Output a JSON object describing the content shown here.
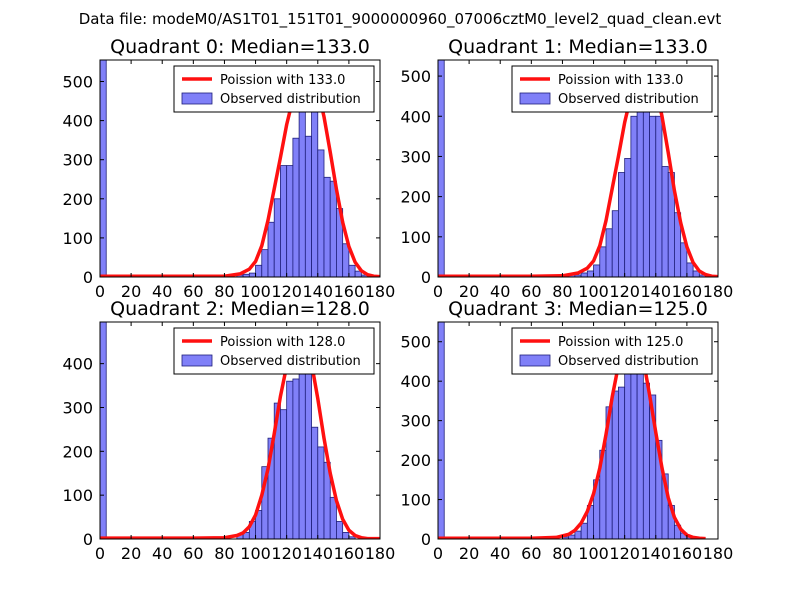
{
  "figure": {
    "suptitle": "Data file: modeM0/AS1T01_151T01_9000000960_07006cztM0_level2_quad_clean.evt"
  },
  "colors": {
    "bar_fill": "#8080f8",
    "bar_edge": "#1e1e7a",
    "curve": "#ff1010",
    "axis": "#000000",
    "background": "#ffffff"
  },
  "chart_data": [
    {
      "type": "bar",
      "title": "Quadrant 0: Median=133.0",
      "xlim": [
        0,
        180
      ],
      "ylim": [
        0,
        555
      ],
      "xticks": [
        0,
        20,
        40,
        60,
        80,
        100,
        120,
        140,
        160,
        180
      ],
      "yticks": [
        0,
        100,
        200,
        300,
        400,
        500
      ],
      "bin_width": 4,
      "bins": [
        {
          "x": 0,
          "height": 555
        },
        {
          "x": 88,
          "height": 5
        },
        {
          "x": 92,
          "height": 7
        },
        {
          "x": 96,
          "height": 10
        },
        {
          "x": 100,
          "height": 30
        },
        {
          "x": 104,
          "height": 70
        },
        {
          "x": 108,
          "height": 140
        },
        {
          "x": 112,
          "height": 200
        },
        {
          "x": 116,
          "height": 285
        },
        {
          "x": 120,
          "height": 285
        },
        {
          "x": 124,
          "height": 355
        },
        {
          "x": 128,
          "height": 520
        },
        {
          "x": 132,
          "height": 360
        },
        {
          "x": 136,
          "height": 510
        },
        {
          "x": 140,
          "height": 325
        },
        {
          "x": 144,
          "height": 255
        },
        {
          "x": 148,
          "height": 245
        },
        {
          "x": 152,
          "height": 175
        },
        {
          "x": 156,
          "height": 85
        },
        {
          "x": 160,
          "height": 30
        },
        {
          "x": 164,
          "height": 15
        },
        {
          "x": 168,
          "height": 5
        }
      ],
      "series": [
        {
          "name": "Poission with 133.0",
          "kind": "line",
          "color": "#ff1010",
          "x": [
            0,
            20,
            40,
            60,
            80,
            90,
            96,
            100,
            104,
            108,
            112,
            116,
            120,
            124,
            128,
            132,
            136,
            140,
            144,
            148,
            152,
            156,
            160,
            164,
            168,
            172,
            176,
            180
          ],
          "y": [
            2,
            2,
            2,
            2,
            2,
            8,
            20,
            40,
            80,
            145,
            225,
            305,
            390,
            455,
            500,
            525,
            520,
            480,
            410,
            320,
            225,
            140,
            78,
            38,
            16,
            6,
            2,
            1
          ]
        },
        {
          "name": "Observed distribution",
          "kind": "bar"
        }
      ],
      "legend": "upper-right"
    },
    {
      "type": "bar",
      "title": "Quadrant 1: Median=133.0",
      "xlim": [
        0,
        180
      ],
      "ylim": [
        0,
        540
      ],
      "xticks": [
        0,
        20,
        40,
        60,
        80,
        100,
        120,
        140,
        160,
        180
      ],
      "yticks": [
        0,
        100,
        200,
        300,
        400,
        500
      ],
      "bin_width": 4,
      "bins": [
        {
          "x": 0,
          "height": 540
        },
        {
          "x": 80,
          "height": 5
        },
        {
          "x": 84,
          "height": 5
        },
        {
          "x": 88,
          "height": 5
        },
        {
          "x": 92,
          "height": 10
        },
        {
          "x": 96,
          "height": 15
        },
        {
          "x": 100,
          "height": 30
        },
        {
          "x": 104,
          "height": 75
        },
        {
          "x": 108,
          "height": 120
        },
        {
          "x": 112,
          "height": 165
        },
        {
          "x": 116,
          "height": 260
        },
        {
          "x": 120,
          "height": 295
        },
        {
          "x": 124,
          "height": 400
        },
        {
          "x": 128,
          "height": 510
        },
        {
          "x": 132,
          "height": 490
        },
        {
          "x": 136,
          "height": 400
        },
        {
          "x": 140,
          "height": 400
        },
        {
          "x": 144,
          "height": 275
        },
        {
          "x": 148,
          "height": 260
        },
        {
          "x": 152,
          "height": 160
        },
        {
          "x": 156,
          "height": 85
        },
        {
          "x": 160,
          "height": 35
        },
        {
          "x": 164,
          "height": 15
        },
        {
          "x": 168,
          "height": 5
        },
        {
          "x": 172,
          "height": 5
        }
      ],
      "series": [
        {
          "name": "Poission with 133.0",
          "kind": "line",
          "color": "#ff1010",
          "x": [
            0,
            20,
            40,
            60,
            80,
            90,
            96,
            100,
            104,
            108,
            112,
            116,
            120,
            124,
            128,
            132,
            136,
            140,
            144,
            148,
            152,
            156,
            160,
            164,
            168,
            172,
            176,
            180
          ],
          "y": [
            2,
            2,
            2,
            2,
            3,
            10,
            22,
            40,
            78,
            140,
            220,
            300,
            385,
            450,
            495,
            515,
            510,
            470,
            400,
            310,
            215,
            135,
            75,
            36,
            15,
            6,
            2,
            1
          ]
        },
        {
          "name": "Observed distribution",
          "kind": "bar"
        }
      ],
      "legend": "upper-right"
    },
    {
      "type": "bar",
      "title": "Quadrant 2: Median=128.0",
      "xlim": [
        0,
        180
      ],
      "ylim": [
        0,
        495
      ],
      "xticks": [
        0,
        20,
        40,
        60,
        80,
        100,
        120,
        140,
        160,
        180
      ],
      "yticks": [
        0,
        100,
        200,
        300,
        400
      ],
      "bin_width": 4,
      "bins": [
        {
          "x": 0,
          "height": 495
        },
        {
          "x": 88,
          "height": 10
        },
        {
          "x": 92,
          "height": 15
        },
        {
          "x": 96,
          "height": 40
        },
        {
          "x": 100,
          "height": 65
        },
        {
          "x": 104,
          "height": 165
        },
        {
          "x": 108,
          "height": 230
        },
        {
          "x": 112,
          "height": 310
        },
        {
          "x": 116,
          "height": 295
        },
        {
          "x": 120,
          "height": 360
        },
        {
          "x": 124,
          "height": 365
        },
        {
          "x": 128,
          "height": 460
        },
        {
          "x": 132,
          "height": 410
        },
        {
          "x": 136,
          "height": 255
        },
        {
          "x": 140,
          "height": 210
        },
        {
          "x": 144,
          "height": 175
        },
        {
          "x": 148,
          "height": 95
        },
        {
          "x": 152,
          "height": 40
        },
        {
          "x": 156,
          "height": 15
        },
        {
          "x": 160,
          "height": 5
        }
      ],
      "series": [
        {
          "name": "Poission with 128.0",
          "kind": "line",
          "color": "#ff1010",
          "x": [
            0,
            20,
            40,
            60,
            80,
            88,
            92,
            96,
            100,
            104,
            108,
            112,
            116,
            120,
            124,
            128,
            132,
            136,
            140,
            144,
            148,
            152,
            156,
            160,
            164,
            168,
            172,
            176,
            180
          ],
          "y": [
            2,
            2,
            2,
            2,
            3,
            8,
            14,
            28,
            55,
            100,
            160,
            240,
            325,
            395,
            450,
            470,
            455,
            400,
            320,
            230,
            150,
            88,
            45,
            20,
            8,
            3,
            1,
            1,
            1
          ]
        },
        {
          "name": "Observed distribution",
          "kind": "bar"
        }
      ],
      "legend": "upper-right"
    },
    {
      "type": "bar",
      "title": "Quadrant 3: Median=125.0",
      "xlim": [
        0,
        180
      ],
      "ylim": [
        0,
        550
      ],
      "xticks": [
        0,
        20,
        40,
        60,
        80,
        100,
        120,
        140,
        160,
        180
      ],
      "yticks": [
        0,
        100,
        200,
        300,
        400,
        500
      ],
      "bin_width": 4,
      "bins": [
        {
          "x": 0,
          "height": 550
        },
        {
          "x": 80,
          "height": 5
        },
        {
          "x": 84,
          "height": 10
        },
        {
          "x": 88,
          "height": 20
        },
        {
          "x": 92,
          "height": 40
        },
        {
          "x": 96,
          "height": 85
        },
        {
          "x": 100,
          "height": 150
        },
        {
          "x": 104,
          "height": 225
        },
        {
          "x": 108,
          "height": 335
        },
        {
          "x": 112,
          "height": 375
        },
        {
          "x": 116,
          "height": 385
        },
        {
          "x": 120,
          "height": 525
        },
        {
          "x": 124,
          "height": 510
        },
        {
          "x": 128,
          "height": 440
        },
        {
          "x": 132,
          "height": 395
        },
        {
          "x": 136,
          "height": 365
        },
        {
          "x": 140,
          "height": 250
        },
        {
          "x": 144,
          "height": 165
        },
        {
          "x": 148,
          "height": 85
        },
        {
          "x": 152,
          "height": 35
        },
        {
          "x": 156,
          "height": 15
        },
        {
          "x": 160,
          "height": 5
        },
        {
          "x": 164,
          "height": 5
        }
      ],
      "series": [
        {
          "name": "Poission with 125.0",
          "kind": "line",
          "color": "#ff1010",
          "x": [
            0,
            20,
            40,
            60,
            76,
            84,
            88,
            92,
            96,
            100,
            104,
            108,
            112,
            116,
            120,
            124,
            128,
            132,
            136,
            140,
            144,
            148,
            152,
            156,
            160,
            164,
            168,
            172
          ],
          "y": [
            2,
            2,
            2,
            2,
            4,
            12,
            22,
            40,
            70,
            115,
            180,
            265,
            360,
            440,
            500,
            525,
            510,
            455,
            365,
            270,
            180,
            105,
            55,
            25,
            10,
            4,
            2,
            1
          ]
        },
        {
          "name": "Observed distribution",
          "kind": "bar"
        }
      ],
      "legend": "upper-right"
    }
  ]
}
